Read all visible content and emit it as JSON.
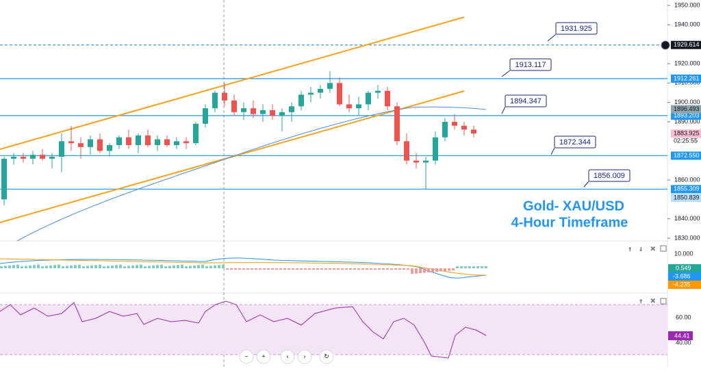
{
  "chart_data": {
    "type": "candlestick",
    "title_lines": [
      "Gold- XAU/USD",
      "4-Hour Timeframe"
    ],
    "ylim": [
      1828.6,
      1952.8
    ],
    "yticks": [
      {
        "value": 1950,
        "label": "1950.000"
      },
      {
        "value": 1940,
        "label": "1940.000"
      },
      {
        "value": 1920,
        "label": "1920.000"
      },
      {
        "value": 1910,
        "label": "1910.000"
      },
      {
        "value": 1900,
        "label": "1900.000"
      },
      {
        "value": 1890,
        "label": "1890.000"
      },
      {
        "value": 1860,
        "label": "1860.000"
      },
      {
        "value": 1840,
        "label": "1840.000"
      },
      {
        "value": 1830,
        "label": "1830.000"
      }
    ],
    "up_color": "#26a69a",
    "down_color": "#ef5350",
    "ohlc": [
      [
        1850,
        1872,
        1847,
        1871
      ],
      [
        1871,
        1874,
        1868,
        1872
      ],
      [
        1872,
        1874,
        1869,
        1871
      ],
      [
        1871,
        1875,
        1868,
        1873
      ],
      [
        1873,
        1876,
        1870,
        1871
      ],
      [
        1871,
        1874,
        1866,
        1872
      ],
      [
        1872,
        1884,
        1864,
        1880
      ],
      [
        1880,
        1888,
        1875,
        1879
      ],
      [
        1879,
        1882,
        1871,
        1877
      ],
      [
        1877,
        1883,
        1873,
        1881
      ],
      [
        1881,
        1884,
        1874,
        1875
      ],
      [
        1875,
        1879,
        1872,
        1878
      ],
      [
        1878,
        1883,
        1876,
        1882
      ],
      [
        1882,
        1886,
        1876,
        1878
      ],
      [
        1878,
        1884,
        1874,
        1883
      ],
      [
        1883,
        1886,
        1877,
        1878
      ],
      [
        1878,
        1883,
        1875,
        1881
      ],
      [
        1881,
        1883,
        1877,
        1878
      ],
      [
        1878,
        1882,
        1876,
        1880
      ],
      [
        1880,
        1882,
        1876,
        1879
      ],
      [
        1879,
        1890,
        1878,
        1889
      ],
      [
        1889,
        1899,
        1887,
        1897
      ],
      [
        1897,
        1906,
        1895,
        1905
      ],
      [
        1905,
        1910,
        1898,
        1901
      ],
      [
        1901,
        1904,
        1893,
        1895
      ],
      [
        1895,
        1900,
        1891,
        1897
      ],
      [
        1897,
        1901,
        1892,
        1894
      ],
      [
        1894,
        1899,
        1890,
        1896
      ],
      [
        1896,
        1899,
        1891,
        1893
      ],
      [
        1893,
        1897,
        1885,
        1895
      ],
      [
        1895,
        1900,
        1890,
        1898
      ],
      [
        1898,
        1906,
        1896,
        1904
      ],
      [
        1904,
        1908,
        1900,
        1905
      ],
      [
        1905,
        1909,
        1902,
        1907
      ],
      [
        1907,
        1916,
        1905,
        1910
      ],
      [
        1910,
        1913,
        1898,
        1899
      ],
      [
        1899,
        1904,
        1895,
        1897
      ],
      [
        1897,
        1903,
        1893,
        1899
      ],
      [
        1899,
        1906,
        1896,
        1905
      ],
      [
        1905,
        1909,
        1902,
        1906
      ],
      [
        1906,
        1908,
        1896,
        1898
      ],
      [
        1898,
        1900,
        1878,
        1880
      ],
      [
        1880,
        1884,
        1868,
        1870
      ],
      [
        1870,
        1874,
        1866,
        1869
      ],
      [
        1869,
        1872,
        1855,
        1870
      ],
      [
        1870,
        1885,
        1868,
        1882
      ],
      [
        1882,
        1892,
        1880,
        1890
      ],
      [
        1890,
        1894,
        1886,
        1888
      ],
      [
        1888,
        1890,
        1883,
        1886
      ],
      [
        1886,
        1888,
        1882,
        1884
      ]
    ],
    "levels": [
      {
        "value": 1929.614,
        "label": "1929.614",
        "color": "#131722"
      },
      {
        "value": 1912.261,
        "label": "1912.261",
        "color": "#2196f3"
      },
      {
        "value": 1893.203,
        "label": "1893.203",
        "color": "#2196f3"
      },
      {
        "value": 1872.55,
        "label": "1872.550",
        "color": "#2196f3"
      },
      {
        "value": 1855.309,
        "label": "1855.309",
        "color": "#2196f3"
      }
    ],
    "price_labels": [
      {
        "value": 1896.493,
        "label": "1896.493",
        "color": "#90a4ae"
      },
      {
        "value": 1883.925,
        "label": "1883.925",
        "color": "#f8bbd0"
      },
      {
        "value": 1850.839,
        "label": "1850.839",
        "color": "#bbdefb"
      }
    ],
    "countdown": "02:25:55",
    "callouts": [
      1931.925,
      1913.117,
      1894.347,
      1872.344,
      1856.009
    ],
    "macd_labels": {
      "axis": "10.000",
      "values": [
        "0.549",
        "-3.686",
        "-4.235"
      ]
    },
    "rsi_labels": {
      "axis": [
        "60.00",
        "40.00"
      ],
      "value": "44.41"
    }
  }
}
